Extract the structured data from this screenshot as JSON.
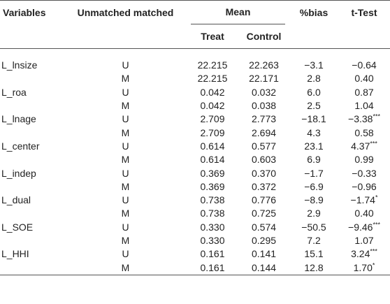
{
  "headers": {
    "variables": "Variables",
    "unmatched_matched": "Unmatched matched",
    "mean": "Mean",
    "treat": "Treat",
    "control": "Control",
    "bias": "%bias",
    "ttest": "t-Test"
  },
  "rows": [
    {
      "var": "L_lnsize",
      "um": "U",
      "treat": "22.215",
      "control": "22.263",
      "bias": "−3.1",
      "t": "−0.64",
      "sig": ""
    },
    {
      "var": "",
      "um": "M",
      "treat": "22.215",
      "control": "22.171",
      "bias": "2.8",
      "t": "0.40",
      "sig": ""
    },
    {
      "var": "L_roa",
      "um": "U",
      "treat": "0.042",
      "control": "0.032",
      "bias": "6.0",
      "t": "0.87",
      "sig": ""
    },
    {
      "var": "",
      "um": "M",
      "treat": "0.042",
      "control": "0.038",
      "bias": "2.5",
      "t": "1.04",
      "sig": ""
    },
    {
      "var": "L_lnage",
      "um": "U",
      "treat": "2.709",
      "control": "2.773",
      "bias": "−18.1",
      "t": "−3.38",
      "sig": "***"
    },
    {
      "var": "",
      "um": "M",
      "treat": "2.709",
      "control": "2.694",
      "bias": "4.3",
      "t": "0.58",
      "sig": ""
    },
    {
      "var": "L_center",
      "um": "U",
      "treat": "0.614",
      "control": "0.577",
      "bias": "23.1",
      "t": "4.37",
      "sig": "***"
    },
    {
      "var": "",
      "um": "M",
      "treat": "0.614",
      "control": "0.603",
      "bias": "6.9",
      "t": "0.99",
      "sig": ""
    },
    {
      "var": "L_indep",
      "um": "U",
      "treat": "0.369",
      "control": "0.370",
      "bias": "−1.7",
      "t": "−0.33",
      "sig": ""
    },
    {
      "var": "",
      "um": "M",
      "treat": "0.369",
      "control": "0.372",
      "bias": "−6.9",
      "t": "−0.96",
      "sig": ""
    },
    {
      "var": "L_dual",
      "um": "U",
      "treat": "0.738",
      "control": "0.776",
      "bias": "−8.9",
      "t": "−1.74",
      "sig": "*"
    },
    {
      "var": "",
      "um": "M",
      "treat": "0.738",
      "control": "0.725",
      "bias": "2.9",
      "t": "0.40",
      "sig": ""
    },
    {
      "var": "L_SOE",
      "um": "U",
      "treat": "0.330",
      "control": "0.574",
      "bias": "−50.5",
      "t": "−9.46",
      "sig": "***"
    },
    {
      "var": "",
      "um": "M",
      "treat": "0.330",
      "control": "0.295",
      "bias": "7.2",
      "t": "1.07",
      "sig": ""
    },
    {
      "var": "L_HHI",
      "um": "U",
      "treat": "0.161",
      "control": "0.141",
      "bias": "15.1",
      "t": "3.24",
      "sig": "***"
    },
    {
      "var": "",
      "um": "M",
      "treat": "0.161",
      "control": "0.144",
      "bias": "12.8",
      "t": "1.70",
      "sig": "*"
    }
  ]
}
